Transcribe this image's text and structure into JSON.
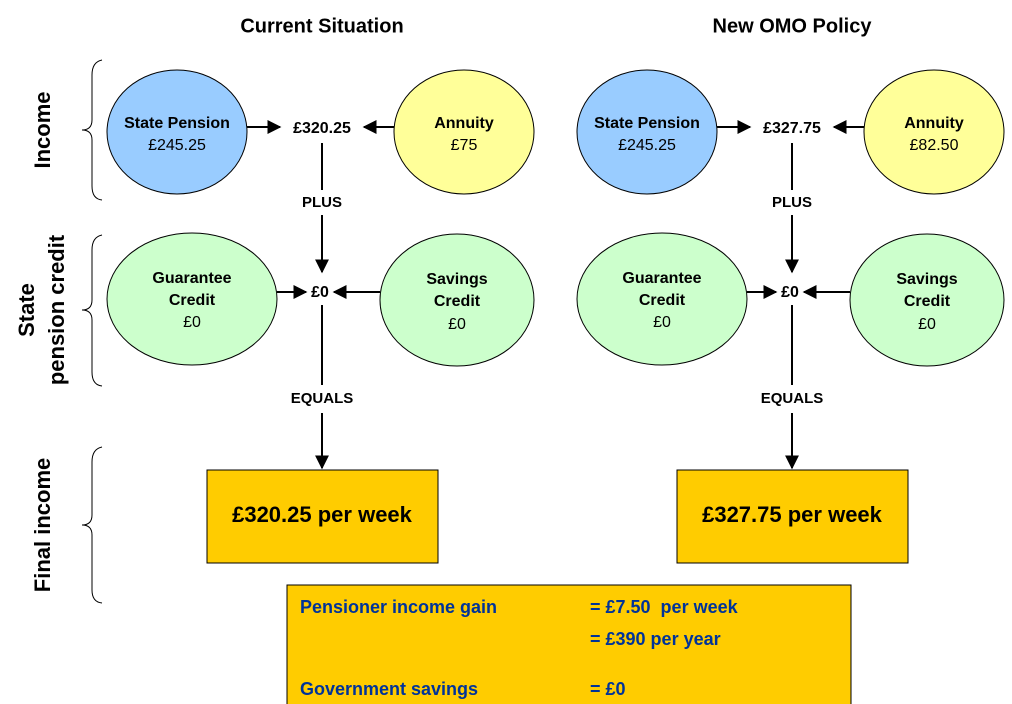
{
  "columns": [
    {
      "title": "Current Situation",
      "income": {
        "state_pension": {
          "label": "State Pension",
          "value": "£245.25"
        },
        "annuity": {
          "label": "Annuity",
          "value": "£75"
        },
        "total": "£320.25"
      },
      "plus": "PLUS",
      "credit": {
        "guarantee": {
          "label": [
            "Guarantee",
            "Credit"
          ],
          "value": "£0"
        },
        "savings": {
          "label": [
            "Savings",
            "Credit"
          ],
          "value": "£0"
        },
        "total": "£0"
      },
      "equals": "EQUALS",
      "final": "£320.25 per week"
    },
    {
      "title": "New OMO Policy",
      "income": {
        "state_pension": {
          "label": "State Pension",
          "value": "£245.25"
        },
        "annuity": {
          "label": "Annuity",
          "value": "£82.50"
        },
        "total": "£327.75"
      },
      "plus": "PLUS",
      "credit": {
        "guarantee": {
          "label": [
            "Guarantee",
            "Credit"
          ],
          "value": "£0"
        },
        "savings": {
          "label": [
            "Savings",
            "Credit"
          ],
          "value": "£0"
        },
        "total": "£0"
      },
      "equals": "EQUALS",
      "final": "£327.75 per week"
    }
  ],
  "row_labels": {
    "income": "Income",
    "state_pension_credit": [
      "State",
      "pension credit"
    ],
    "final_income": "Final income"
  },
  "summary": {
    "rows": [
      {
        "label": "Pensioner income gain",
        "values": [
          "= £7.50  per week",
          "= £390 per year"
        ]
      },
      {
        "label": "Government savings",
        "values": [
          "= £0"
        ]
      }
    ]
  }
}
